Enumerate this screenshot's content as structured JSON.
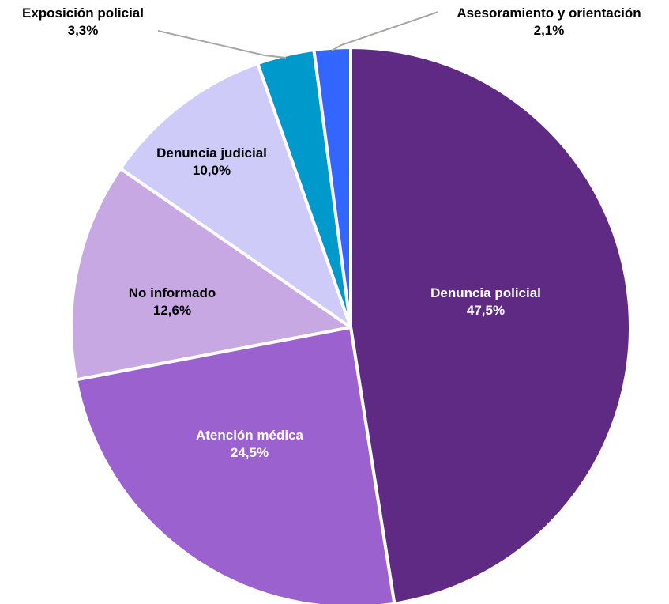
{
  "chart_data": {
    "type": "pie",
    "title": "",
    "slices": [
      {
        "label": "Denuncia policial",
        "value_label": "47,5%",
        "value": 47.5,
        "color": "#5e2a84",
        "text_color": "#ffffff"
      },
      {
        "label": "Atención médica",
        "value_label": "24,5%",
        "value": 24.5,
        "color": "#9b61cf",
        "text_color": "#ffffff"
      },
      {
        "label": "No informado",
        "value_label": "12,6%",
        "value": 12.6,
        "color": "#c8a8e2",
        "text_color": "#000000"
      },
      {
        "label": "Denuncia judicial",
        "value_label": "10,0%",
        "value": 10.0,
        "color": "#cfcbf9",
        "text_color": "#000000"
      },
      {
        "label": "Exposición  policial",
        "value_label": "3,3%",
        "value": 3.3,
        "color": "#0099cc",
        "text_color": "#000000"
      },
      {
        "label": "Asesoramiento  y  orientación",
        "value_label": "2,1%",
        "value": 2.1,
        "color": "#3366ff",
        "text_color": "#000000"
      }
    ],
    "start_angle": "12 o'clock",
    "direction": "clockwise",
    "legend": "none",
    "leader_line_color": "#a6a6a6"
  }
}
